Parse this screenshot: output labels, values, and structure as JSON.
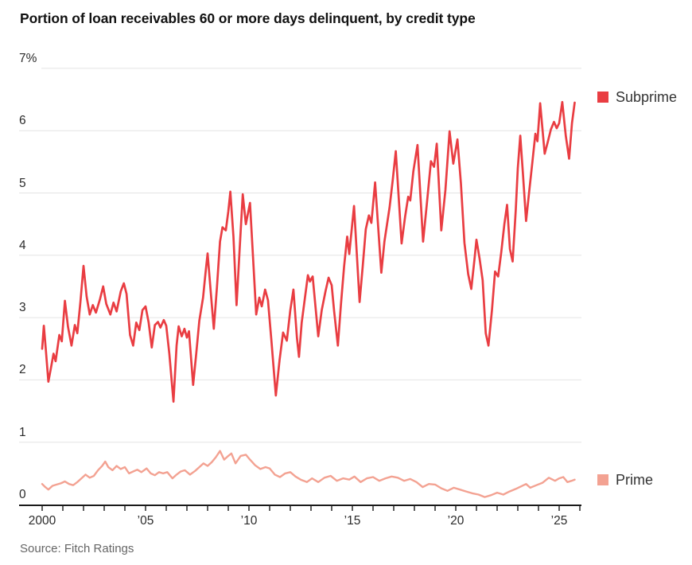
{
  "page": {
    "background": "#ffffff"
  },
  "colors": {
    "subprime": "#e93d42",
    "prime": "#f3a292",
    "gridline": "#e4e4e4",
    "axis": "#1a1a1a",
    "title_text": "#121212",
    "tick_text": "#2b2b2b",
    "legend_text": "#333333",
    "source_text": "#666666"
  },
  "chart_data": {
    "type": "line",
    "title": "Portion of loan receivables 60 or more days delinquent, by credit type",
    "source": "Source: Fitch Ratings",
    "unit": "%",
    "grid": "horizontal-only",
    "legend_position": "right-outside",
    "ylim": [
      0,
      7
    ],
    "xlim": [
      2000,
      2025.75
    ],
    "y_ticks": [
      {
        "value": 7,
        "label": "7%"
      },
      {
        "value": 6,
        "label": "6"
      },
      {
        "value": 5,
        "label": "5"
      },
      {
        "value": 4,
        "label": "4"
      },
      {
        "value": 3,
        "label": "3"
      },
      {
        "value": 2,
        "label": "2"
      },
      {
        "value": 1,
        "label": "1"
      },
      {
        "value": 0,
        "label": "0"
      }
    ],
    "x_ticks": [
      {
        "value": 2000,
        "label": "2000"
      },
      {
        "value": 2005,
        "label": "’05"
      },
      {
        "value": 2010,
        "label": "’10"
      },
      {
        "value": 2015,
        "label": "’15"
      },
      {
        "value": 2020,
        "label": "’20"
      },
      {
        "value": 2025,
        "label": "’25"
      }
    ],
    "minor_x_ticks_every_year": true,
    "series": [
      {
        "name": "Subprime",
        "color": "#e93d42",
        "points": [
          [
            2000.0,
            2.5
          ],
          [
            2000.08,
            2.87
          ],
          [
            2000.17,
            2.52
          ],
          [
            2000.3,
            1.97
          ],
          [
            2000.42,
            2.18
          ],
          [
            2000.55,
            2.42
          ],
          [
            2000.65,
            2.3
          ],
          [
            2000.83,
            2.72
          ],
          [
            2000.95,
            2.62
          ],
          [
            2001.1,
            3.27
          ],
          [
            2001.25,
            2.85
          ],
          [
            2001.42,
            2.55
          ],
          [
            2001.58,
            2.88
          ],
          [
            2001.7,
            2.75
          ],
          [
            2001.85,
            3.25
          ],
          [
            2002.0,
            3.83
          ],
          [
            2002.15,
            3.34
          ],
          [
            2002.3,
            3.05
          ],
          [
            2002.45,
            3.2
          ],
          [
            2002.6,
            3.08
          ],
          [
            2002.8,
            3.3
          ],
          [
            2002.95,
            3.5
          ],
          [
            2003.1,
            3.22
          ],
          [
            2003.3,
            3.05
          ],
          [
            2003.45,
            3.24
          ],
          [
            2003.6,
            3.1
          ],
          [
            2003.8,
            3.42
          ],
          [
            2003.95,
            3.55
          ],
          [
            2004.08,
            3.38
          ],
          [
            2004.25,
            2.72
          ],
          [
            2004.4,
            2.55
          ],
          [
            2004.55,
            2.92
          ],
          [
            2004.7,
            2.8
          ],
          [
            2004.85,
            3.12
          ],
          [
            2005.0,
            3.18
          ],
          [
            2005.15,
            2.92
          ],
          [
            2005.3,
            2.52
          ],
          [
            2005.45,
            2.88
          ],
          [
            2005.6,
            2.93
          ],
          [
            2005.72,
            2.84
          ],
          [
            2005.88,
            2.96
          ],
          [
            2006.0,
            2.87
          ],
          [
            2006.15,
            2.42
          ],
          [
            2006.35,
            1.65
          ],
          [
            2006.5,
            2.55
          ],
          [
            2006.6,
            2.86
          ],
          [
            2006.75,
            2.7
          ],
          [
            2006.88,
            2.82
          ],
          [
            2007.0,
            2.68
          ],
          [
            2007.1,
            2.78
          ],
          [
            2007.3,
            1.92
          ],
          [
            2007.45,
            2.42
          ],
          [
            2007.6,
            2.95
          ],
          [
            2007.78,
            3.32
          ],
          [
            2007.9,
            3.72
          ],
          [
            2008.0,
            4.03
          ],
          [
            2008.15,
            3.42
          ],
          [
            2008.3,
            2.82
          ],
          [
            2008.45,
            3.48
          ],
          [
            2008.6,
            4.22
          ],
          [
            2008.72,
            4.45
          ],
          [
            2008.88,
            4.4
          ],
          [
            2009.0,
            4.7
          ],
          [
            2009.1,
            5.02
          ],
          [
            2009.25,
            4.3
          ],
          [
            2009.4,
            3.2
          ],
          [
            2009.55,
            4.1
          ],
          [
            2009.7,
            4.98
          ],
          [
            2009.85,
            4.5
          ],
          [
            2010.05,
            4.84
          ],
          [
            2010.2,
            3.95
          ],
          [
            2010.35,
            3.05
          ],
          [
            2010.5,
            3.32
          ],
          [
            2010.62,
            3.18
          ],
          [
            2010.78,
            3.45
          ],
          [
            2010.92,
            3.28
          ],
          [
            2011.08,
            2.65
          ],
          [
            2011.3,
            1.75
          ],
          [
            2011.48,
            2.32
          ],
          [
            2011.65,
            2.76
          ],
          [
            2011.83,
            2.63
          ],
          [
            2012.0,
            3.12
          ],
          [
            2012.15,
            3.45
          ],
          [
            2012.32,
            2.68
          ],
          [
            2012.42,
            2.37
          ],
          [
            2012.55,
            2.92
          ],
          [
            2012.7,
            3.3
          ],
          [
            2012.85,
            3.68
          ],
          [
            2012.95,
            3.58
          ],
          [
            2013.08,
            3.66
          ],
          [
            2013.35,
            2.7
          ],
          [
            2013.52,
            3.12
          ],
          [
            2013.7,
            3.42
          ],
          [
            2013.85,
            3.64
          ],
          [
            2014.0,
            3.52
          ],
          [
            2014.12,
            3.1
          ],
          [
            2014.3,
            2.55
          ],
          [
            2014.45,
            3.22
          ],
          [
            2014.6,
            3.82
          ],
          [
            2014.75,
            4.3
          ],
          [
            2014.85,
            4.02
          ],
          [
            2015.08,
            4.79
          ],
          [
            2015.35,
            3.25
          ],
          [
            2015.5,
            3.82
          ],
          [
            2015.65,
            4.42
          ],
          [
            2015.8,
            4.64
          ],
          [
            2015.92,
            4.52
          ],
          [
            2016.1,
            5.17
          ],
          [
            2016.4,
            3.72
          ],
          [
            2016.55,
            4.22
          ],
          [
            2016.8,
            4.77
          ],
          [
            2016.95,
            5.2
          ],
          [
            2017.1,
            5.67
          ],
          [
            2017.38,
            4.19
          ],
          [
            2017.55,
            4.62
          ],
          [
            2017.7,
            4.94
          ],
          [
            2017.8,
            4.88
          ],
          [
            2017.95,
            5.35
          ],
          [
            2018.15,
            5.77
          ],
          [
            2018.42,
            4.22
          ],
          [
            2018.6,
            4.82
          ],
          [
            2018.8,
            5.51
          ],
          [
            2018.95,
            5.42
          ],
          [
            2019.08,
            5.79
          ],
          [
            2019.3,
            4.4
          ],
          [
            2019.5,
            5.05
          ],
          [
            2019.7,
            5.99
          ],
          [
            2019.88,
            5.47
          ],
          [
            2020.08,
            5.86
          ],
          [
            2020.25,
            5.15
          ],
          [
            2020.42,
            4.2
          ],
          [
            2020.6,
            3.7
          ],
          [
            2020.75,
            3.46
          ],
          [
            2020.9,
            3.92
          ],
          [
            2021.0,
            4.25
          ],
          [
            2021.15,
            3.95
          ],
          [
            2021.3,
            3.6
          ],
          [
            2021.45,
            2.75
          ],
          [
            2021.58,
            2.55
          ],
          [
            2021.75,
            3.12
          ],
          [
            2021.9,
            3.74
          ],
          [
            2022.05,
            3.66
          ],
          [
            2022.2,
            4.05
          ],
          [
            2022.35,
            4.5
          ],
          [
            2022.48,
            4.81
          ],
          [
            2022.62,
            4.1
          ],
          [
            2022.75,
            3.9
          ],
          [
            2022.9,
            4.72
          ],
          [
            2023.0,
            5.4
          ],
          [
            2023.12,
            5.92
          ],
          [
            2023.25,
            5.3
          ],
          [
            2023.4,
            4.55
          ],
          [
            2023.55,
            5.02
          ],
          [
            2023.7,
            5.48
          ],
          [
            2023.85,
            5.95
          ],
          [
            2023.95,
            5.83
          ],
          [
            2024.08,
            6.44
          ],
          [
            2024.3,
            5.63
          ],
          [
            2024.45,
            5.82
          ],
          [
            2024.6,
            6.02
          ],
          [
            2024.75,
            6.14
          ],
          [
            2024.88,
            6.04
          ],
          [
            2025.0,
            6.12
          ],
          [
            2025.15,
            6.46
          ],
          [
            2025.32,
            5.92
          ],
          [
            2025.48,
            5.55
          ],
          [
            2025.62,
            6.12
          ],
          [
            2025.75,
            6.45
          ]
        ]
      },
      {
        "name": "Prime",
        "color": "#f3a292",
        "points": [
          [
            2000.0,
            0.33
          ],
          [
            2000.15,
            0.28
          ],
          [
            2000.3,
            0.24
          ],
          [
            2000.5,
            0.3
          ],
          [
            2000.7,
            0.32
          ],
          [
            2000.9,
            0.34
          ],
          [
            2001.1,
            0.37
          ],
          [
            2001.3,
            0.33
          ],
          [
            2001.5,
            0.31
          ],
          [
            2001.7,
            0.36
          ],
          [
            2001.9,
            0.42
          ],
          [
            2002.1,
            0.48
          ],
          [
            2002.3,
            0.43
          ],
          [
            2002.5,
            0.46
          ],
          [
            2002.7,
            0.55
          ],
          [
            2002.9,
            0.62
          ],
          [
            2003.05,
            0.69
          ],
          [
            2003.2,
            0.6
          ],
          [
            2003.4,
            0.55
          ],
          [
            2003.6,
            0.62
          ],
          [
            2003.8,
            0.57
          ],
          [
            2004.0,
            0.6
          ],
          [
            2004.2,
            0.5
          ],
          [
            2004.4,
            0.53
          ],
          [
            2004.6,
            0.56
          ],
          [
            2004.8,
            0.52
          ],
          [
            2005.05,
            0.58
          ],
          [
            2005.25,
            0.5
          ],
          [
            2005.45,
            0.47
          ],
          [
            2005.65,
            0.52
          ],
          [
            2005.85,
            0.5
          ],
          [
            2006.05,
            0.52
          ],
          [
            2006.3,
            0.42
          ],
          [
            2006.5,
            0.48
          ],
          [
            2006.7,
            0.53
          ],
          [
            2006.9,
            0.55
          ],
          [
            2007.15,
            0.48
          ],
          [
            2007.4,
            0.54
          ],
          [
            2007.6,
            0.6
          ],
          [
            2007.8,
            0.66
          ],
          [
            2008.0,
            0.62
          ],
          [
            2008.2,
            0.68
          ],
          [
            2008.4,
            0.76
          ],
          [
            2008.6,
            0.86
          ],
          [
            2008.8,
            0.72
          ],
          [
            2009.0,
            0.78
          ],
          [
            2009.15,
            0.82
          ],
          [
            2009.35,
            0.66
          ],
          [
            2009.6,
            0.78
          ],
          [
            2009.85,
            0.8
          ],
          [
            2010.05,
            0.72
          ],
          [
            2010.3,
            0.63
          ],
          [
            2010.55,
            0.57
          ],
          [
            2010.8,
            0.6
          ],
          [
            2011.0,
            0.58
          ],
          [
            2011.25,
            0.48
          ],
          [
            2011.5,
            0.44
          ],
          [
            2011.75,
            0.5
          ],
          [
            2012.0,
            0.52
          ],
          [
            2012.25,
            0.45
          ],
          [
            2012.5,
            0.4
          ],
          [
            2012.8,
            0.36
          ],
          [
            2013.05,
            0.42
          ],
          [
            2013.35,
            0.36
          ],
          [
            2013.65,
            0.43
          ],
          [
            2013.95,
            0.46
          ],
          [
            2014.25,
            0.38
          ],
          [
            2014.55,
            0.42
          ],
          [
            2014.85,
            0.4
          ],
          [
            2015.1,
            0.45
          ],
          [
            2015.4,
            0.36
          ],
          [
            2015.7,
            0.42
          ],
          [
            2016.0,
            0.44
          ],
          [
            2016.3,
            0.38
          ],
          [
            2016.6,
            0.42
          ],
          [
            2016.9,
            0.45
          ],
          [
            2017.2,
            0.43
          ],
          [
            2017.5,
            0.38
          ],
          [
            2017.8,
            0.41
          ],
          [
            2018.1,
            0.36
          ],
          [
            2018.4,
            0.28
          ],
          [
            2018.7,
            0.33
          ],
          [
            2019.0,
            0.32
          ],
          [
            2019.3,
            0.26
          ],
          [
            2019.6,
            0.22
          ],
          [
            2019.9,
            0.27
          ],
          [
            2020.2,
            0.24
          ],
          [
            2020.5,
            0.21
          ],
          [
            2020.8,
            0.18
          ],
          [
            2021.1,
            0.16
          ],
          [
            2021.4,
            0.12
          ],
          [
            2021.7,
            0.15
          ],
          [
            2022.0,
            0.19
          ],
          [
            2022.3,
            0.16
          ],
          [
            2022.6,
            0.21
          ],
          [
            2022.9,
            0.25
          ],
          [
            2023.15,
            0.29
          ],
          [
            2023.4,
            0.33
          ],
          [
            2023.6,
            0.27
          ],
          [
            2023.9,
            0.31
          ],
          [
            2024.2,
            0.35
          ],
          [
            2024.5,
            0.43
          ],
          [
            2024.8,
            0.38
          ],
          [
            2025.0,
            0.42
          ],
          [
            2025.2,
            0.44
          ],
          [
            2025.4,
            0.36
          ],
          [
            2025.6,
            0.38
          ],
          [
            2025.75,
            0.4
          ]
        ]
      }
    ]
  }
}
